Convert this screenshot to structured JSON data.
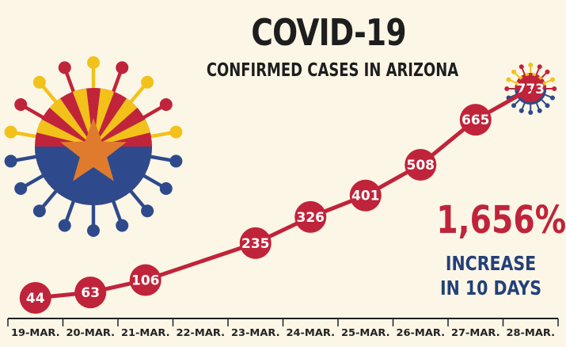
{
  "title": "COVID-19",
  "subtitle": "CONFIRMED CASES IN ARIZONA",
  "callout": {
    "value": "1,656%",
    "line1": "INCREASE",
    "line2": "IN 10 DAYS"
  },
  "colors": {
    "background": "#fbf6e6",
    "marker": "#c0243a",
    "line": "#c0243a",
    "increase_text": "#23407a",
    "value_text": "#c0243a",
    "flag_red": "#c0243a",
    "flag_yellow": "#f2c21b",
    "flag_blue": "#2e4a8c",
    "star": "#e07b2e"
  },
  "icons": [
    "virus-arizona-flag-icon",
    "virus-small-icon"
  ],
  "chart_data": {
    "type": "line",
    "categories": [
      "19-MAR.",
      "20-MAR.",
      "21-MAR.",
      "22-MAR.",
      "23-MAR.",
      "24-MAR.",
      "25-MAR.",
      "26-MAR.",
      "27-MAR.",
      "28-MAR."
    ],
    "x": [
      "19-MAR.",
      "20-MAR.",
      "21-MAR.",
      "23-MAR.",
      "24-MAR.",
      "25-MAR.",
      "26-MAR.",
      "27-MAR.",
      "28-MAR."
    ],
    "values": [
      44,
      63,
      106,
      235,
      326,
      401,
      508,
      665,
      773
    ],
    "data_labels": [
      "44",
      "63",
      "106",
      "235",
      "326",
      "401",
      "508",
      "665",
      "773"
    ],
    "title": "COVID-19",
    "subtitle": "CONFIRMED CASES IN ARIZONA",
    "xlabel": "",
    "ylabel": "",
    "grid": false,
    "legend": "none"
  }
}
